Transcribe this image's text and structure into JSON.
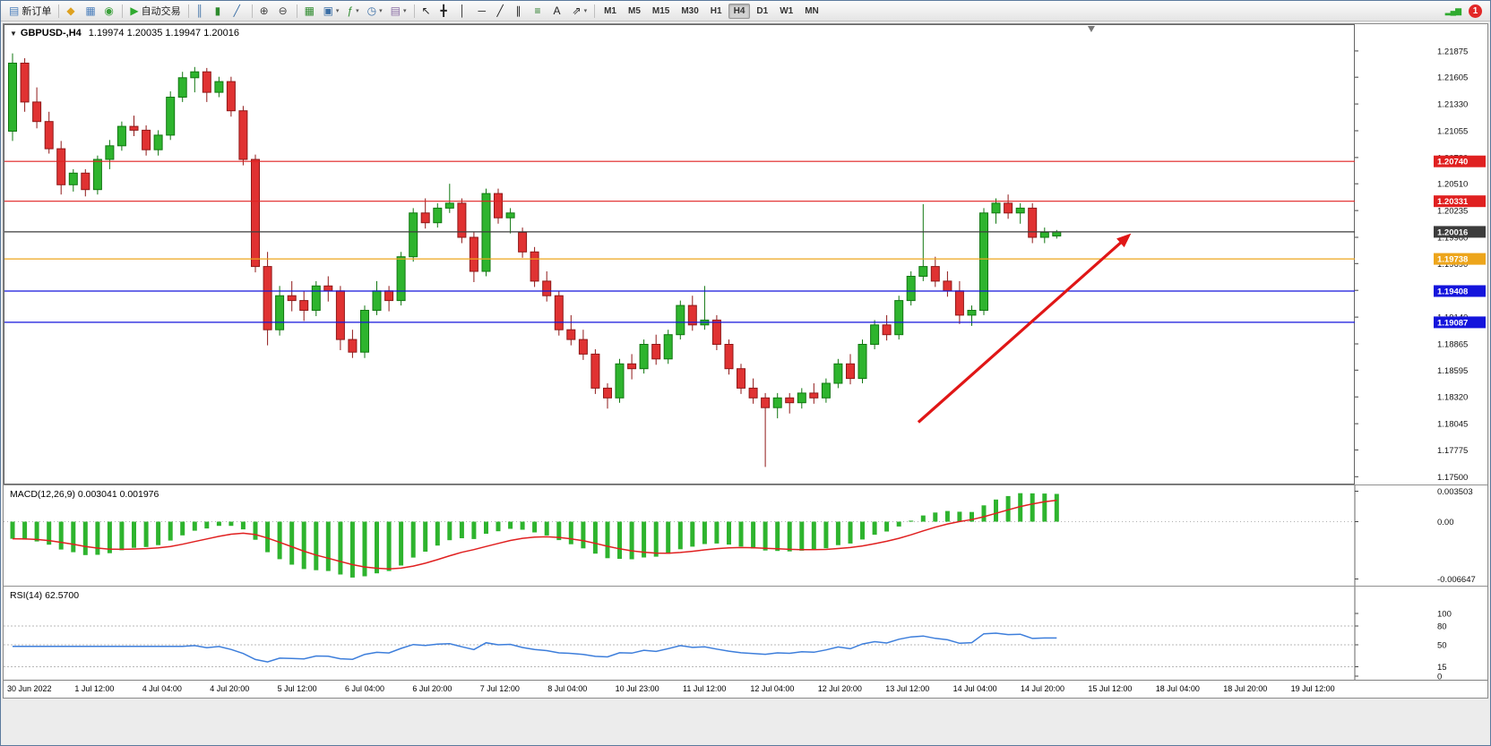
{
  "toolbar": {
    "groups": [
      [
        {
          "name": "new-order",
          "glyph": "▤",
          "glyph_color": "#4a7ebb",
          "text": "新订单"
        }
      ],
      [
        {
          "name": "market-watch",
          "glyph": "◆",
          "glyph_color": "#dea11f"
        },
        {
          "name": "data-window",
          "glyph": "▦",
          "glyph_color": "#4a7ebb"
        },
        {
          "name": "navigator",
          "glyph": "◉",
          "glyph_color": "#3aa03a"
        }
      ],
      [
        {
          "name": "autotrading",
          "glyph": "▶",
          "glyph_color": "#2faa2f",
          "text": "自动交易"
        }
      ],
      [
        {
          "name": "bar-chart",
          "glyph": "║",
          "glyph_color": "#3a6ea5"
        },
        {
          "name": "candlestick-chart",
          "glyph": "▮",
          "glyph_color": "#2e8b2e"
        },
        {
          "name": "line-chart",
          "glyph": "╱",
          "glyph_color": "#3a6ea5"
        }
      ],
      [
        {
          "name": "zoom-in",
          "glyph": "⊕",
          "glyph_color": "#444444"
        },
        {
          "name": "zoom-out",
          "glyph": "⊖",
          "glyph_color": "#444444"
        }
      ],
      [
        {
          "name": "tile-windows",
          "glyph": "▦",
          "glyph_color": "#2e8b2e"
        },
        {
          "name": "new-chart",
          "glyph": "▣",
          "glyph_color": "#3a6ea5",
          "caret": true
        },
        {
          "name": "indicators",
          "glyph": "ƒ",
          "glyph_color": "#2e8b2e",
          "caret": true
        },
        {
          "name": "periods",
          "glyph": "◷",
          "glyph_color": "#3a6ea5",
          "caret": true
        },
        {
          "name": "templates",
          "glyph": "▤",
          "glyph_color": "#8a6ea5",
          "caret": true
        }
      ],
      [
        {
          "name": "cursor",
          "glyph": "↖",
          "glyph_color": "#222222"
        },
        {
          "name": "crosshair",
          "glyph": "╋",
          "glyph_color": "#222222"
        },
        {
          "name": "vertical-line",
          "glyph": "│",
          "glyph_color": "#222222"
        },
        {
          "name": "horizontal-line",
          "glyph": "─",
          "glyph_color": "#222222"
        },
        {
          "name": "trendline",
          "glyph": "╱",
          "glyph_color": "#222222"
        },
        {
          "name": "channel",
          "glyph": "∥",
          "glyph_color": "#222222"
        },
        {
          "name": "fibonacci",
          "glyph": "≡",
          "glyph_color": "#227722"
        },
        {
          "name": "text",
          "glyph": "A",
          "glyph_color": "#222222"
        },
        {
          "name": "arrows",
          "glyph": "⇗",
          "glyph_color": "#222222",
          "caret": true
        }
      ]
    ],
    "timeframes": [
      "M1",
      "M5",
      "M15",
      "M30",
      "H1",
      "H4",
      "D1",
      "W1",
      "MN"
    ],
    "active_timeframe": "H4",
    "right_icons": [
      {
        "name": "connection-status",
        "glyph": "▂▄▆",
        "glyph_color": "#2faa2f"
      }
    ],
    "notification_count": "1"
  },
  "chart": {
    "collapse_glyph": "▼",
    "symbol_period": "GBPUSD-,H4",
    "ohlc_text": "1.19974 1.20035 1.19947 1.20016",
    "open": "1.19974",
    "high": "1.20035",
    "low": "1.19947",
    "close": "1.20016"
  },
  "chart_data": {
    "type": "candlestick",
    "symbol": "GBPUSD",
    "timeframe": "H4",
    "price_range": [
      1.1742,
      1.2215
    ],
    "axis_ticks": [
      1.21875,
      1.21605,
      1.2133,
      1.21055,
      1.2078,
      1.2051,
      1.20235,
      1.1996,
      1.1969,
      1.19415,
      1.1914,
      1.18865,
      1.18595,
      1.1832,
      1.18045,
      1.17775,
      1.175
    ],
    "colors": {
      "up": "#2eb42e",
      "up_border": "#117711",
      "down": "#e03232",
      "down_border": "#8f1818",
      "macd_hist": "#2eb42e",
      "macd_signal": "#e02020",
      "rsi_line": "#3d7edb",
      "grid": "#b8b8b8",
      "red_level": "#e02020",
      "blue_level": "#1414dc",
      "orange_level": "#eda51b",
      "current_price": "#3c3c3c",
      "arrow": "#e01616"
    },
    "hlines": [
      {
        "price": 1.2074,
        "label": "1.20740",
        "color": "#e02020",
        "type": "resistance"
      },
      {
        "price": 1.20331,
        "label": "1.20331",
        "color": "#e02020",
        "type": "resistance"
      },
      {
        "price": 1.20016,
        "label": "1.20016",
        "color": "#3c3c3c",
        "type": "current-price"
      },
      {
        "price": 1.19738,
        "label": "1.19738",
        "color": "#eda51b",
        "type": "level"
      },
      {
        "price": 1.19408,
        "label": "1.19408",
        "color": "#1414dc",
        "type": "support"
      },
      {
        "price": 1.19087,
        "label": "1.19087",
        "color": "#1414dc",
        "type": "support"
      }
    ],
    "arrow": {
      "x1": 0.677,
      "p1": 1.1806,
      "x2": 0.828,
      "p2": 1.1992
    },
    "shift_x": 0.805,
    "candles": [
      [
        1.2105,
        1.2185,
        1.2095,
        1.2175
      ],
      [
        1.2175,
        1.218,
        1.2125,
        1.2135
      ],
      [
        1.2135,
        1.215,
        1.2108,
        1.2115
      ],
      [
        1.2115,
        1.2125,
        1.2082,
        1.2087
      ],
      [
        1.2087,
        1.2095,
        1.204,
        1.205
      ],
      [
        1.205,
        1.2066,
        1.2043,
        1.2062
      ],
      [
        1.2062,
        1.2066,
        1.2038,
        1.2045
      ],
      [
        1.2045,
        1.208,
        1.204,
        1.2076
      ],
      [
        1.2076,
        1.2096,
        1.2066,
        1.209
      ],
      [
        1.209,
        1.2115,
        1.2085,
        1.211
      ],
      [
        1.211,
        1.2121,
        1.21,
        1.2106
      ],
      [
        1.2106,
        1.2111,
        1.208,
        1.2086
      ],
      [
        1.2086,
        1.2106,
        1.208,
        1.2101
      ],
      [
        1.2101,
        1.2146,
        1.2096,
        1.214
      ],
      [
        1.214,
        1.2166,
        1.2135,
        1.216
      ],
      [
        1.216,
        1.2171,
        1.2145,
        1.2166
      ],
      [
        1.2166,
        1.217,
        1.2135,
        1.2145
      ],
      [
        1.2145,
        1.2161,
        1.214,
        1.2156
      ],
      [
        1.2156,
        1.2161,
        1.212,
        1.2126
      ],
      [
        1.2126,
        1.2131,
        1.207,
        1.2076
      ],
      [
        1.2076,
        1.2081,
        1.196,
        1.1966
      ],
      [
        1.1966,
        1.1981,
        1.1885,
        1.1901
      ],
      [
        1.1901,
        1.1946,
        1.1895,
        1.1936
      ],
      [
        1.1936,
        1.1951,
        1.192,
        1.1931
      ],
      [
        1.1931,
        1.1941,
        1.191,
        1.1921
      ],
      [
        1.1921,
        1.1951,
        1.1915,
        1.1946
      ],
      [
        1.1946,
        1.1956,
        1.193,
        1.1941
      ],
      [
        1.1941,
        1.1946,
        1.188,
        1.1891
      ],
      [
        1.1891,
        1.1901,
        1.1872,
        1.1878
      ],
      [
        1.1878,
        1.1926,
        1.1872,
        1.1921
      ],
      [
        1.1921,
        1.1951,
        1.1916,
        1.1941
      ],
      [
        1.1941,
        1.1946,
        1.192,
        1.1931
      ],
      [
        1.1931,
        1.1981,
        1.1926,
        1.1976
      ],
      [
        1.1976,
        1.2026,
        1.1971,
        1.2021
      ],
      [
        1.2021,
        1.2036,
        1.2005,
        1.2011
      ],
      [
        1.2011,
        1.2031,
        1.2006,
        1.2026
      ],
      [
        1.2026,
        1.2051,
        1.2021,
        1.2031
      ],
      [
        1.2031,
        1.2036,
        1.199,
        1.1996
      ],
      [
        1.1996,
        1.2001,
        1.195,
        1.1961
      ],
      [
        1.1961,
        1.2046,
        1.1956,
        1.2041
      ],
      [
        1.2041,
        1.2046,
        1.201,
        1.2016
      ],
      [
        1.2016,
        1.2026,
        1.2,
        1.2021
      ],
      [
        1.2001,
        1.2006,
        1.1975,
        1.1981
      ],
      [
        1.1981,
        1.1986,
        1.1945,
        1.1951
      ],
      [
        1.1951,
        1.1961,
        1.193,
        1.1936
      ],
      [
        1.1936,
        1.1941,
        1.1895,
        1.1901
      ],
      [
        1.1901,
        1.1916,
        1.1885,
        1.1891
      ],
      [
        1.1891,
        1.1901,
        1.187,
        1.1876
      ],
      [
        1.1876,
        1.1881,
        1.1835,
        1.1841
      ],
      [
        1.1841,
        1.1846,
        1.182,
        1.1831
      ],
      [
        1.1831,
        1.1871,
        1.1826,
        1.1866
      ],
      [
        1.1866,
        1.1876,
        1.185,
        1.1861
      ],
      [
        1.1861,
        1.1891,
        1.1856,
        1.1886
      ],
      [
        1.1886,
        1.1896,
        1.1865,
        1.1871
      ],
      [
        1.1871,
        1.1901,
        1.1866,
        1.1896
      ],
      [
        1.1896,
        1.1931,
        1.1891,
        1.1926
      ],
      [
        1.1926,
        1.1936,
        1.19,
        1.1906
      ],
      [
        1.1906,
        1.1946,
        1.1901,
        1.1911
      ],
      [
        1.1911,
        1.1916,
        1.188,
        1.1886
      ],
      [
        1.1886,
        1.1891,
        1.1855,
        1.1861
      ],
      [
        1.1861,
        1.1866,
        1.1835,
        1.1841
      ],
      [
        1.1841,
        1.1851,
        1.1825,
        1.1831
      ],
      [
        1.1831,
        1.1836,
        1.176,
        1.1821
      ],
      [
        1.1821,
        1.1836,
        1.181,
        1.1831
      ],
      [
        1.1831,
        1.1836,
        1.1815,
        1.1826
      ],
      [
        1.1826,
        1.1841,
        1.182,
        1.1836
      ],
      [
        1.1836,
        1.1846,
        1.1825,
        1.1831
      ],
      [
        1.1831,
        1.1851,
        1.1826,
        1.1846
      ],
      [
        1.1846,
        1.1871,
        1.1841,
        1.1866
      ],
      [
        1.1866,
        1.1876,
        1.1845,
        1.1851
      ],
      [
        1.1851,
        1.1891,
        1.1846,
        1.1886
      ],
      [
        1.1886,
        1.1911,
        1.1881,
        1.1906
      ],
      [
        1.1906,
        1.1916,
        1.189,
        1.1896
      ],
      [
        1.1896,
        1.1936,
        1.1891,
        1.1931
      ],
      [
        1.1931,
        1.1961,
        1.1926,
        1.1956
      ],
      [
        1.1956,
        1.203,
        1.1951,
        1.1966
      ],
      [
        1.1966,
        1.1976,
        1.1945,
        1.1951
      ],
      [
        1.1951,
        1.1961,
        1.1935,
        1.1941
      ],
      [
        1.1941,
        1.1951,
        1.1907,
        1.1916
      ],
      [
        1.1916,
        1.1926,
        1.1905,
        1.1921
      ],
      [
        1.1921,
        1.2026,
        1.1916,
        1.2021
      ],
      [
        1.2021,
        1.2036,
        1.201,
        1.2031
      ],
      [
        1.2031,
        1.204,
        1.2015,
        1.2021
      ],
      [
        1.2021,
        1.2031,
        1.201,
        1.2026
      ],
      [
        1.2026,
        1.2031,
        1.199,
        1.1996
      ],
      [
        1.1996,
        1.2006,
        1.199,
        1.2001
      ],
      [
        1.19974,
        1.20035,
        1.19947,
        1.20016
      ]
    ],
    "time_labels": [
      "30 Jun 2022",
      "1 Jul 12:00",
      "4 Jul 04:00",
      "4 Jul 20:00",
      "5 Jul 12:00",
      "6 Jul 04:00",
      "6 Jul 20:00",
      "7 Jul 12:00",
      "8 Jul 04:00",
      "10 Jul 23:00",
      "11 Jul 12:00",
      "12 Jul 04:00",
      "12 Jul 20:00",
      "13 Jul 12:00",
      "14 Jul 04:00",
      "14 Jul 20:00",
      "15 Jul 12:00",
      "18 Jul 04:00",
      "18 Jul 20:00",
      "19 Jul 12:00"
    ],
    "macd": {
      "label_full": "MACD(12,26,9) 0.003041 0.001976",
      "value_main": "0.003041",
      "value_signal": "0.001976",
      "params": [
        12,
        26,
        9
      ],
      "axis": [
        "0.003503",
        "0.00",
        "-0.006647"
      ],
      "range": [
        -0.006647,
        0.003503
      ]
    },
    "rsi": {
      "label_full": "RSI(14) 62.5700",
      "value": "62.5700",
      "period": 14,
      "levels": [
        100,
        80,
        50,
        15,
        0
      ]
    }
  }
}
